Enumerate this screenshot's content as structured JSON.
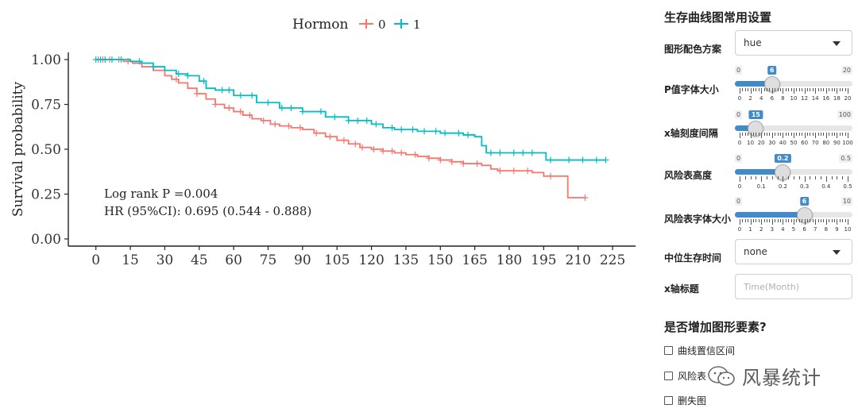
{
  "plot": {
    "legend": {
      "title": "Hormon",
      "labels": [
        "0",
        "1"
      ]
    },
    "annotation": {
      "pvalue": "Log rank P =0.004",
      "hr": "HR (95%CI): 0.695 (0.544 - 0.888)"
    }
  },
  "colors": {
    "group0": "#F8766D",
    "group1": "#00BFC4",
    "accent": "#428BCA"
  },
  "chart_data": {
    "type": "line",
    "title": "",
    "xlabel": "",
    "ylabel": "Survival probability",
    "xlim": [
      -12,
      235
    ],
    "ylim": [
      -0.04,
      1.04
    ],
    "xticks": [
      0,
      15,
      30,
      45,
      60,
      75,
      90,
      105,
      120,
      135,
      150,
      165,
      180,
      195,
      210,
      225
    ],
    "yticks": [
      0.0,
      0.25,
      0.5,
      0.75,
      1.0
    ],
    "ytick_labels": [
      "0.00",
      "0.25",
      "0.50",
      "0.75",
      "1.00"
    ],
    "series": [
      {
        "name": "0",
        "color": "#F8766D",
        "x": [
          0,
          8,
          12,
          16,
          20,
          25,
          30,
          33,
          36,
          40,
          44,
          48,
          52,
          56,
          60,
          64,
          68,
          72,
          76,
          80,
          85,
          90,
          95,
          100,
          105,
          110,
          115,
          120,
          125,
          130,
          135,
          140,
          145,
          150,
          155,
          160,
          165,
          168,
          172,
          175,
          180,
          185,
          190,
          195,
          200,
          205,
          205.5,
          213
        ],
        "y": [
          1.0,
          1.0,
          0.99,
          0.98,
          0.96,
          0.94,
          0.91,
          0.89,
          0.87,
          0.84,
          0.81,
          0.78,
          0.75,
          0.73,
          0.71,
          0.69,
          0.67,
          0.66,
          0.64,
          0.63,
          0.62,
          0.61,
          0.59,
          0.57,
          0.55,
          0.53,
          0.51,
          0.5,
          0.49,
          0.48,
          0.47,
          0.46,
          0.45,
          0.44,
          0.43,
          0.42,
          0.42,
          0.41,
          0.39,
          0.38,
          0.38,
          0.38,
          0.37,
          0.35,
          0.35,
          0.35,
          0.23,
          0.23
        ],
        "censor_x": [
          1,
          3,
          6,
          10,
          14,
          35,
          44,
          52,
          58,
          63,
          67,
          73,
          78,
          84,
          89,
          96,
          102,
          108,
          113,
          116,
          121,
          125,
          129,
          133,
          139,
          145,
          150,
          155,
          160,
          166,
          176,
          182,
          188,
          198,
          213
        ]
      },
      {
        "name": "1",
        "color": "#00BFC4",
        "x": [
          0,
          12,
          15,
          20,
          25,
          30,
          35,
          40,
          45,
          48,
          52,
          60,
          70,
          80,
          90,
          100,
          110,
          120,
          125,
          130,
          140,
          150,
          160,
          165,
          168,
          170,
          180,
          190,
          195,
          196,
          210,
          222
        ],
        "y": [
          1.0,
          1.0,
          0.99,
          0.98,
          0.96,
          0.94,
          0.92,
          0.91,
          0.88,
          0.84,
          0.83,
          0.8,
          0.76,
          0.73,
          0.71,
          0.68,
          0.66,
          0.64,
          0.62,
          0.61,
          0.6,
          0.59,
          0.58,
          0.57,
          0.52,
          0.48,
          0.48,
          0.48,
          0.48,
          0.44,
          0.44,
          0.44
        ],
        "censor_x": [
          0,
          2,
          4,
          7,
          11,
          19,
          25,
          36,
          40,
          47,
          55,
          58,
          63,
          68,
          75,
          81,
          85,
          90,
          98,
          104,
          110,
          114,
          118,
          122,
          129,
          133,
          138,
          143,
          148,
          152,
          158,
          162,
          172,
          176,
          182,
          186,
          190,
          198,
          206,
          212,
          218,
          222
        ]
      }
    ]
  },
  "sidebar": {
    "title": "生存曲线图常用设置",
    "palette": {
      "label": "图形配色方案",
      "value": "hue"
    },
    "pfont": {
      "label": "P值字体大小",
      "min": "0",
      "max": "20",
      "value": "6",
      "value_num": 6,
      "range": [
        0,
        20
      ],
      "ticks": [
        "0",
        "2",
        "4",
        "6",
        "8",
        "10",
        "12",
        "14",
        "16",
        "18",
        "20"
      ]
    },
    "xinterval": {
      "label": "x轴刻度间隔",
      "min": "0",
      "max": "100",
      "value": "15",
      "value_num": 15,
      "range": [
        0,
        100
      ],
      "ticks": [
        "0",
        "10",
        "20",
        "30",
        "40",
        "50",
        "60",
        "70",
        "80",
        "90",
        "100"
      ]
    },
    "risk_height": {
      "label": "风险表高度",
      "min": "0",
      "max": "0.5",
      "value": "0.2",
      "value_num": 0.2,
      "range": [
        0,
        0.5
      ],
      "ticks": [
        "0",
        "0.1",
        "0.2",
        "0.3",
        "0.4",
        "0.5"
      ]
    },
    "risk_font": {
      "label": "风险表字体大小",
      "min": "0",
      "max": "10",
      "value": "6",
      "value_num": 6,
      "range": [
        0,
        10
      ],
      "ticks": [
        "0",
        "1",
        "2",
        "3",
        "4",
        "5",
        "6",
        "7",
        "8",
        "9",
        "10"
      ]
    },
    "median": {
      "label": "中位生存时间",
      "value": "none"
    },
    "xtitle": {
      "label": "x轴标题",
      "placeholder": "Time(Month)"
    },
    "extras": {
      "title": "是否增加图形要素?",
      "items": [
        "曲线置信区间",
        "风险表",
        "删失图"
      ]
    }
  },
  "watermark": {
    "text": "风暴统计"
  }
}
